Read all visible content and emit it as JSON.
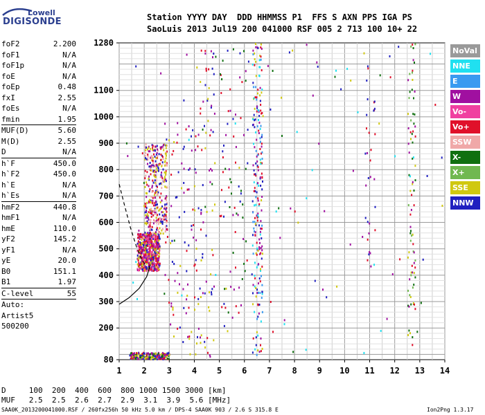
{
  "logo": {
    "line1": "Lowell",
    "line2": "DIGISONDE"
  },
  "header": {
    "line1": "Station YYYY DAY  DDD HHMMSS P1  FFS S AXN PPS IGA PS",
    "line2": "SaoLuis 2013 Jul19 200 041000 RSF 005 2 713 100 10+ 22"
  },
  "params": [
    {
      "label": "foF2",
      "value": "2.200"
    },
    {
      "label": "foF1",
      "value": "N/A"
    },
    {
      "label": "foF1p",
      "value": "N/A"
    },
    {
      "label": "foE",
      "value": "N/A"
    },
    {
      "label": "foEp",
      "value": "0.48"
    },
    {
      "label": "fxI",
      "value": "2.55"
    },
    {
      "label": "foEs",
      "value": "N/A"
    },
    {
      "label": "fmin",
      "value": "1.95"
    },
    {
      "sep": true
    },
    {
      "label": "MUF(D)",
      "value": "5.60"
    },
    {
      "label": "M(D)",
      "value": "2.55"
    },
    {
      "label": "D",
      "value": "N/A"
    },
    {
      "sep": true
    },
    {
      "label": "h`F",
      "value": "450.0"
    },
    {
      "label": "h`F2",
      "value": "450.0"
    },
    {
      "label": "h`E",
      "value": "N/A"
    },
    {
      "label": "h`Es",
      "value": "N/A"
    },
    {
      "sep": true
    },
    {
      "label": "hmF2",
      "value": "440.8"
    },
    {
      "label": "hmF1",
      "value": "N/A"
    },
    {
      "label": "hmE",
      "value": "110.0"
    },
    {
      "label": "yF2",
      "value": "145.2"
    },
    {
      "label": "yF1",
      "value": "N/A"
    },
    {
      "label": "yE",
      "value": "20.0"
    },
    {
      "label": "B0",
      "value": "151.1"
    },
    {
      "label": "B1",
      "value": "1.97"
    },
    {
      "sep": true
    },
    {
      "label": "C-level",
      "value": "55"
    },
    {
      "sep": true
    },
    {
      "text": "Auto:"
    },
    {
      "text": "Artist5"
    },
    {
      "text": "500200"
    }
  ],
  "legend": [
    {
      "label": "NoVal",
      "color": "#9a9a9a"
    },
    {
      "label": "NNE",
      "color": "#20e0f0"
    },
    {
      "label": "E",
      "color": "#3a9af0"
    },
    {
      "label": "W",
      "color": "#a010a0"
    },
    {
      "label": "Vo-",
      "color": "#f040a0"
    },
    {
      "label": "Vo+",
      "color": "#e0102a"
    },
    {
      "label": "SSW",
      "color": "#f0a8a8"
    },
    {
      "label": "X-",
      "color": "#107010"
    },
    {
      "label": "X+",
      "color": "#70b850"
    },
    {
      "label": "SSE",
      "color": "#d0c810"
    },
    {
      "label": "NNW",
      "color": "#2020c0"
    }
  ],
  "bottom": {
    "d_line": "D     100  200  400  600  800 1000 1500 3000 [km]",
    "muf_line": "MUF   2.5  2.5  2.6  2.7  2.9  3.1  3.9  5.6 [MHz]"
  },
  "footer": {
    "left": "SAA0K_2013200041000.RSF / 260fx256h 50 kHz 5.0 km / DPS-4 SAA0K 903 / 2.6 S 315.8 E",
    "right": "Ion2Png 1.3.17"
  },
  "chart_data": {
    "type": "scatter",
    "xlim": [
      1,
      14
    ],
    "ylim": [
      80,
      1280
    ],
    "x_ticks": [
      1,
      2,
      3,
      4,
      5,
      6,
      7,
      8,
      9,
      10,
      11,
      12,
      13,
      14
    ],
    "y_ticks": [
      80,
      200,
      300,
      400,
      500,
      600,
      700,
      800,
      900,
      1000,
      1100,
      1280
    ],
    "x_tick_labels": [
      "1",
      "2",
      "3",
      "4",
      "5",
      "6",
      "7",
      "8",
      "9",
      "10",
      "11",
      "12",
      "13",
      "14"
    ],
    "y_tick_labels": [
      "80",
      "200",
      "300",
      "400",
      "500",
      "600",
      "700",
      "800",
      "900",
      "1000",
      "1100",
      "1280"
    ],
    "grid": true,
    "legend_position": "right",
    "clusters": [
      {
        "x": [
          1.7,
          2.6
        ],
        "y": [
          420,
          560
        ],
        "count": 600,
        "colors": [
          "#e0102a",
          "#a010a0",
          "#2020c0",
          "#d0c810",
          "#f040a0"
        ]
      },
      {
        "x": [
          2.0,
          2.9
        ],
        "y": [
          560,
          900
        ],
        "count": 350,
        "colors": [
          "#e0102a",
          "#d0c810",
          "#2020c0",
          "#a010a0",
          "#f0a8a8"
        ]
      },
      {
        "x": [
          1.4,
          3.0
        ],
        "y": [
          85,
          110
        ],
        "count": 200,
        "colors": [
          "#2020c0",
          "#a010a0",
          "#d0c810",
          "#107010",
          "#e0102a"
        ]
      },
      {
        "x": [
          6.3,
          6.7
        ],
        "y": [
          90,
          1280
        ],
        "count": 220,
        "colors": [
          "#2020c0",
          "#e0102a",
          "#a010a0",
          "#3a9af0",
          "#20e0f0",
          "#d0c810"
        ]
      },
      {
        "x": [
          4.0,
          4.8
        ],
        "y": [
          90,
          1280
        ],
        "count": 90,
        "colors": [
          "#2020c0",
          "#a010a0",
          "#e0102a",
          "#d0c810"
        ]
      },
      {
        "x": [
          5.0,
          6.1
        ],
        "y": [
          150,
          1280
        ],
        "count": 70,
        "colors": [
          "#2020c0",
          "#a010a0",
          "#e0102a",
          "#107010"
        ]
      },
      {
        "x": [
          12.5,
          12.8
        ],
        "y": [
          150,
          1280
        ],
        "count": 80,
        "colors": [
          "#107010",
          "#e0102a",
          "#70b850",
          "#d0c810",
          "#a010a0"
        ]
      },
      {
        "x": [
          10.8,
          11.2
        ],
        "y": [
          400,
          1200
        ],
        "count": 30,
        "colors": [
          "#a010a0",
          "#e0102a",
          "#2020c0"
        ]
      },
      {
        "x": [
          2.8,
          4.0
        ],
        "y": [
          150,
          1000
        ],
        "count": 80,
        "colors": [
          "#2020c0",
          "#a010a0",
          "#e0102a",
          "#d0c810"
        ]
      },
      {
        "x": [
          1.1,
          14
        ],
        "y": [
          90,
          1280
        ],
        "count": 120,
        "colors": [
          "#2020c0",
          "#a010a0",
          "#e0102a",
          "#d0c810",
          "#20e0f0",
          "#107010"
        ]
      }
    ],
    "profile_curves": [
      {
        "style": "solid",
        "points": [
          [
            1,
            290
          ],
          [
            1.4,
            315
          ],
          [
            1.8,
            350
          ],
          [
            2.1,
            395
          ],
          [
            2.25,
            440
          ]
        ]
      },
      {
        "style": "dashed",
        "points": [
          [
            1,
            745
          ],
          [
            1.2,
            670
          ],
          [
            1.45,
            580
          ],
          [
            1.7,
            505
          ],
          [
            1.9,
            460
          ],
          [
            2.05,
            440
          ]
        ]
      }
    ]
  }
}
